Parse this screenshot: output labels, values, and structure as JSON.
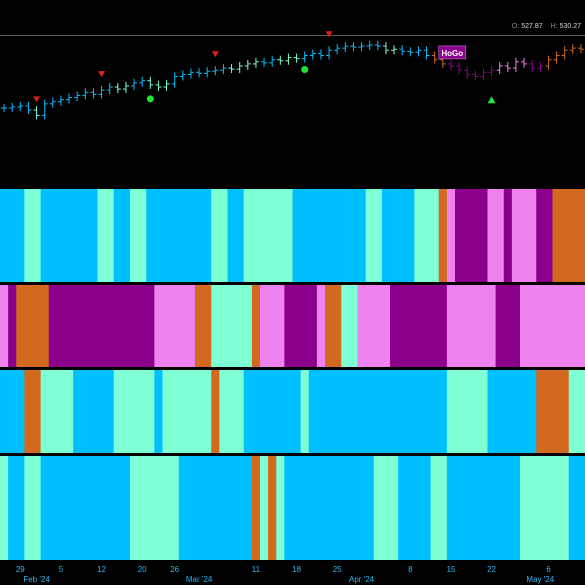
{
  "ohlc_header": {
    "open_label": "O:",
    "open_value": "527.87",
    "high_label": "H:",
    "high_value": "530.27"
  },
  "badge_label": "HoGo",
  "colors": {
    "background": "#000000",
    "blue": "#00BFFF",
    "aqua": "#7FFFD4",
    "purple": "#8B008B",
    "pink": "#EE82EE",
    "orange": "#D2691E",
    "red_marker": "#E0201B",
    "green_marker": "#22E33A",
    "axis_text": "#29B6F6"
  },
  "chart_data": {
    "type": "candlestick",
    "main_pane": {
      "price_close": [
        {
          "t": 0,
          "v": 0.4,
          "c": "blue"
        },
        {
          "t": 1,
          "v": 0.41,
          "c": "blue"
        },
        {
          "t": 2,
          "v": 0.42,
          "c": "blue"
        },
        {
          "t": 3,
          "v": 0.38,
          "c": "blue"
        },
        {
          "t": 4,
          "v": 0.33,
          "c": "aqua"
        },
        {
          "t": 5,
          "v": 0.44,
          "c": "blue"
        },
        {
          "t": 6,
          "v": 0.46,
          "c": "blue"
        },
        {
          "t": 7,
          "v": 0.48,
          "c": "blue"
        },
        {
          "t": 8,
          "v": 0.5,
          "c": "blue"
        },
        {
          "t": 9,
          "v": 0.52,
          "c": "blue"
        },
        {
          "t": 10,
          "v": 0.55,
          "c": "blue"
        },
        {
          "t": 11,
          "v": 0.53,
          "c": "blue"
        },
        {
          "t": 12,
          "v": 0.57,
          "c": "blue"
        },
        {
          "t": 13,
          "v": 0.6,
          "c": "blue"
        },
        {
          "t": 14,
          "v": 0.58,
          "c": "aqua"
        },
        {
          "t": 15,
          "v": 0.61,
          "c": "aqua"
        },
        {
          "t": 16,
          "v": 0.64,
          "c": "blue"
        },
        {
          "t": 17,
          "v": 0.66,
          "c": "blue"
        },
        {
          "t": 18,
          "v": 0.62,
          "c": "aqua"
        },
        {
          "t": 19,
          "v": 0.6,
          "c": "aqua"
        },
        {
          "t": 20,
          "v": 0.63,
          "c": "aqua"
        },
        {
          "t": 21,
          "v": 0.7,
          "c": "blue"
        },
        {
          "t": 22,
          "v": 0.72,
          "c": "blue"
        },
        {
          "t": 23,
          "v": 0.74,
          "c": "blue"
        },
        {
          "t": 24,
          "v": 0.73,
          "c": "blue"
        },
        {
          "t": 25,
          "v": 0.75,
          "c": "blue"
        },
        {
          "t": 26,
          "v": 0.76,
          "c": "blue"
        },
        {
          "t": 27,
          "v": 0.78,
          "c": "blue"
        },
        {
          "t": 28,
          "v": 0.77,
          "c": "aqua"
        },
        {
          "t": 29,
          "v": 0.8,
          "c": "aqua"
        },
        {
          "t": 30,
          "v": 0.82,
          "c": "aqua"
        },
        {
          "t": 31,
          "v": 0.84,
          "c": "aqua"
        },
        {
          "t": 32,
          "v": 0.83,
          "c": "blue"
        },
        {
          "t": 33,
          "v": 0.86,
          "c": "blue"
        },
        {
          "t": 34,
          "v": 0.85,
          "c": "aqua"
        },
        {
          "t": 35,
          "v": 0.88,
          "c": "aqua"
        },
        {
          "t": 36,
          "v": 0.87,
          "c": "aqua"
        },
        {
          "t": 37,
          "v": 0.9,
          "c": "blue"
        },
        {
          "t": 38,
          "v": 0.92,
          "c": "blue"
        },
        {
          "t": 39,
          "v": 0.9,
          "c": "blue"
        },
        {
          "t": 40,
          "v": 0.95,
          "c": "blue"
        },
        {
          "t": 41,
          "v": 0.97,
          "c": "blue"
        },
        {
          "t": 42,
          "v": 0.99,
          "c": "blue"
        },
        {
          "t": 43,
          "v": 0.98,
          "c": "blue"
        },
        {
          "t": 44,
          "v": 0.99,
          "c": "blue"
        },
        {
          "t": 45,
          "v": 1.0,
          "c": "blue"
        },
        {
          "t": 46,
          "v": 0.99,
          "c": "blue"
        },
        {
          "t": 47,
          "v": 0.95,
          "c": "aqua"
        },
        {
          "t": 48,
          "v": 0.96,
          "c": "aqua"
        },
        {
          "t": 49,
          "v": 0.94,
          "c": "blue"
        },
        {
          "t": 50,
          "v": 0.93,
          "c": "blue"
        },
        {
          "t": 51,
          "v": 0.95,
          "c": "blue"
        },
        {
          "t": 52,
          "v": 0.9,
          "c": "blue"
        },
        {
          "t": 53,
          "v": 0.86,
          "c": "orange"
        },
        {
          "t": 54,
          "v": 0.82,
          "c": "orange"
        },
        {
          "t": 55,
          "v": 0.8,
          "c": "purple"
        },
        {
          "t": 56,
          "v": 0.76,
          "c": "purple"
        },
        {
          "t": 57,
          "v": 0.72,
          "c": "purple"
        },
        {
          "t": 58,
          "v": 0.7,
          "c": "purple"
        },
        {
          "t": 59,
          "v": 0.74,
          "c": "purple"
        },
        {
          "t": 60,
          "v": 0.76,
          "c": "purple"
        },
        {
          "t": 61,
          "v": 0.8,
          "c": "pink"
        },
        {
          "t": 62,
          "v": 0.78,
          "c": "pink"
        },
        {
          "t": 63,
          "v": 0.84,
          "c": "pink"
        },
        {
          "t": 64,
          "v": 0.82,
          "c": "pink"
        },
        {
          "t": 65,
          "v": 0.78,
          "c": "purple"
        },
        {
          "t": 66,
          "v": 0.8,
          "c": "purple"
        },
        {
          "t": 67,
          "v": 0.86,
          "c": "orange"
        },
        {
          "t": 68,
          "v": 0.9,
          "c": "orange"
        },
        {
          "t": 69,
          "v": 0.95,
          "c": "orange"
        },
        {
          "t": 70,
          "v": 0.97,
          "c": "orange"
        },
        {
          "t": 71,
          "v": 0.96,
          "c": "orange"
        }
      ],
      "markers": [
        {
          "t": 4,
          "kind": "red-down",
          "above": true
        },
        {
          "t": 12,
          "kind": "red-down",
          "above": true
        },
        {
          "t": 18,
          "kind": "green-dot",
          "above": false
        },
        {
          "t": 26,
          "kind": "red-down",
          "above": true
        },
        {
          "t": 37,
          "kind": "green-dot",
          "above": false
        },
        {
          "t": 40,
          "kind": "red-down",
          "above": true
        },
        {
          "t": 60,
          "kind": "green-up",
          "above": false
        }
      ],
      "badge_at_t": 54
    },
    "band_panes": [
      {
        "name": "band-1",
        "segments": [
          {
            "from": 0,
            "to": 3,
            "c": "blue"
          },
          {
            "from": 3,
            "to": 5,
            "c": "aqua"
          },
          {
            "from": 5,
            "to": 12,
            "c": "blue"
          },
          {
            "from": 12,
            "to": 14,
            "c": "aqua"
          },
          {
            "from": 14,
            "to": 16,
            "c": "blue"
          },
          {
            "from": 16,
            "to": 18,
            "c": "aqua"
          },
          {
            "from": 18,
            "to": 26,
            "c": "blue"
          },
          {
            "from": 26,
            "to": 28,
            "c": "aqua"
          },
          {
            "from": 28,
            "to": 30,
            "c": "blue"
          },
          {
            "from": 30,
            "to": 36,
            "c": "aqua"
          },
          {
            "from": 36,
            "to": 45,
            "c": "blue"
          },
          {
            "from": 45,
            "to": 47,
            "c": "aqua"
          },
          {
            "from": 47,
            "to": 51,
            "c": "blue"
          },
          {
            "from": 51,
            "to": 54,
            "c": "aqua"
          },
          {
            "from": 54,
            "to": 55,
            "c": "orange"
          },
          {
            "from": 55,
            "to": 56,
            "c": "pink"
          },
          {
            "from": 56,
            "to": 60,
            "c": "purple"
          },
          {
            "from": 60,
            "to": 62,
            "c": "pink"
          },
          {
            "from": 62,
            "to": 63,
            "c": "purple"
          },
          {
            "from": 63,
            "to": 66,
            "c": "pink"
          },
          {
            "from": 66,
            "to": 68,
            "c": "purple"
          },
          {
            "from": 68,
            "to": 72,
            "c": "orange"
          }
        ]
      },
      {
        "name": "band-2",
        "segments": [
          {
            "from": 0,
            "to": 1,
            "c": "pink"
          },
          {
            "from": 1,
            "to": 2,
            "c": "purple"
          },
          {
            "from": 2,
            "to": 6,
            "c": "orange"
          },
          {
            "from": 6,
            "to": 19,
            "c": "purple"
          },
          {
            "from": 19,
            "to": 24,
            "c": "pink"
          },
          {
            "from": 24,
            "to": 26,
            "c": "orange"
          },
          {
            "from": 26,
            "to": 31,
            "c": "aqua"
          },
          {
            "from": 31,
            "to": 32,
            "c": "orange"
          },
          {
            "from": 32,
            "to": 35,
            "c": "pink"
          },
          {
            "from": 35,
            "to": 39,
            "c": "purple"
          },
          {
            "from": 39,
            "to": 40,
            "c": "pink"
          },
          {
            "from": 40,
            "to": 42,
            "c": "orange"
          },
          {
            "from": 42,
            "to": 44,
            "c": "aqua"
          },
          {
            "from": 44,
            "to": 48,
            "c": "pink"
          },
          {
            "from": 48,
            "to": 55,
            "c": "purple"
          },
          {
            "from": 55,
            "to": 61,
            "c": "pink"
          },
          {
            "from": 61,
            "to": 64,
            "c": "purple"
          },
          {
            "from": 64,
            "to": 72,
            "c": "pink"
          }
        ]
      },
      {
        "name": "band-3",
        "segments": [
          {
            "from": 0,
            "to": 3,
            "c": "blue"
          },
          {
            "from": 3,
            "to": 5,
            "c": "orange"
          },
          {
            "from": 5,
            "to": 9,
            "c": "aqua"
          },
          {
            "from": 9,
            "to": 14,
            "c": "blue"
          },
          {
            "from": 14,
            "to": 19,
            "c": "aqua"
          },
          {
            "from": 19,
            "to": 20,
            "c": "blue"
          },
          {
            "from": 20,
            "to": 26,
            "c": "aqua"
          },
          {
            "from": 26,
            "to": 27,
            "c": "orange"
          },
          {
            "from": 27,
            "to": 30,
            "c": "aqua"
          },
          {
            "from": 30,
            "to": 37,
            "c": "blue"
          },
          {
            "from": 37,
            "to": 38,
            "c": "aqua"
          },
          {
            "from": 38,
            "to": 55,
            "c": "blue"
          },
          {
            "from": 55,
            "to": 60,
            "c": "aqua"
          },
          {
            "from": 60,
            "to": 66,
            "c": "blue"
          },
          {
            "from": 66,
            "to": 70,
            "c": "orange"
          },
          {
            "from": 70,
            "to": 72,
            "c": "aqua"
          }
        ]
      },
      {
        "name": "band-4",
        "segments": [
          {
            "from": 0,
            "to": 1,
            "c": "aqua"
          },
          {
            "from": 1,
            "to": 3,
            "c": "blue"
          },
          {
            "from": 3,
            "to": 5,
            "c": "aqua"
          },
          {
            "from": 5,
            "to": 16,
            "c": "blue"
          },
          {
            "from": 16,
            "to": 22,
            "c": "aqua"
          },
          {
            "from": 22,
            "to": 31,
            "c": "blue"
          },
          {
            "from": 31,
            "to": 32,
            "c": "orange"
          },
          {
            "from": 32,
            "to": 33,
            "c": "aqua"
          },
          {
            "from": 33,
            "to": 34,
            "c": "orange"
          },
          {
            "from": 34,
            "to": 35,
            "c": "aqua"
          },
          {
            "from": 35,
            "to": 46,
            "c": "blue"
          },
          {
            "from": 46,
            "to": 49,
            "c": "aqua"
          },
          {
            "from": 49,
            "to": 53,
            "c": "blue"
          },
          {
            "from": 53,
            "to": 55,
            "c": "aqua"
          },
          {
            "from": 55,
            "to": 64,
            "c": "blue"
          },
          {
            "from": 64,
            "to": 70,
            "c": "aqua"
          },
          {
            "from": 70,
            "to": 72,
            "c": "blue"
          }
        ]
      }
    ],
    "x_ticks": [
      {
        "t": 2,
        "label": "29"
      },
      {
        "t": 7,
        "label": "5"
      },
      {
        "t": 12,
        "label": "12"
      },
      {
        "t": 17,
        "label": "20"
      },
      {
        "t": 21,
        "label": "26"
      },
      {
        "t": 31,
        "label": "11"
      },
      {
        "t": 36,
        "label": "18"
      },
      {
        "t": 41,
        "label": "25"
      },
      {
        "t": 50,
        "label": "8"
      },
      {
        "t": 55,
        "label": "15"
      },
      {
        "t": 60,
        "label": "22"
      },
      {
        "t": 67,
        "label": "6"
      }
    ],
    "x_month_labels": [
      {
        "t": 4,
        "label": "Feb '24"
      },
      {
        "t": 24,
        "label": "Mar '24"
      },
      {
        "t": 44,
        "label": "Apr '24"
      },
      {
        "t": 66,
        "label": "May '24"
      }
    ],
    "t_count": 72
  }
}
